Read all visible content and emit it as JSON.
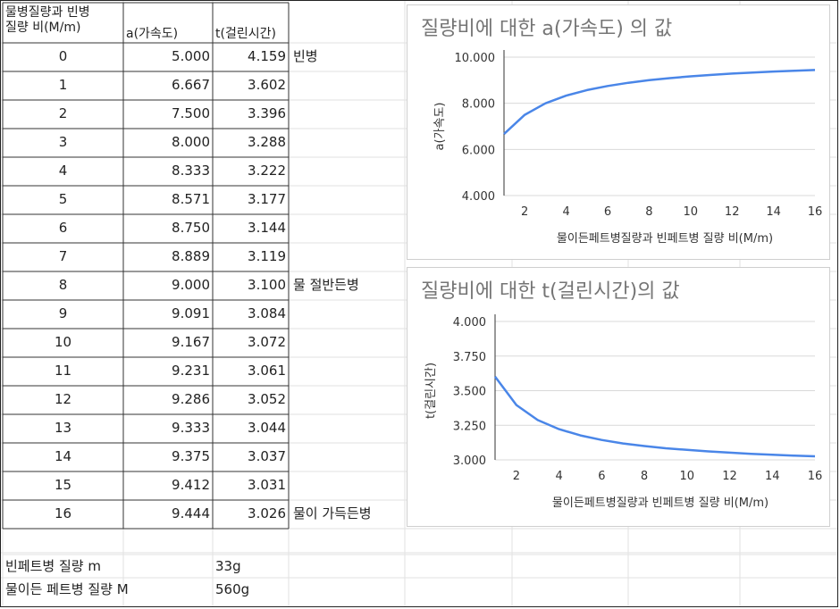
{
  "table": {
    "headers": [
      "물병질량과 빈병\n질량 비(M/m)",
      "a(가속도)",
      "t(걸린시간)"
    ],
    "rows": [
      {
        "ratio": "0",
        "a": "5.000",
        "t": "4.159",
        "note": "빈병"
      },
      {
        "ratio": "1",
        "a": "6.667",
        "t": "3.602",
        "note": ""
      },
      {
        "ratio": "2",
        "a": "7.500",
        "t": "3.396",
        "note": ""
      },
      {
        "ratio": "3",
        "a": "8.000",
        "t": "3.288",
        "note": ""
      },
      {
        "ratio": "4",
        "a": "8.333",
        "t": "3.222",
        "note": ""
      },
      {
        "ratio": "5",
        "a": "8.571",
        "t": "3.177",
        "note": ""
      },
      {
        "ratio": "6",
        "a": "8.750",
        "t": "3.144",
        "note": ""
      },
      {
        "ratio": "7",
        "a": "8.889",
        "t": "3.119",
        "note": ""
      },
      {
        "ratio": "8",
        "a": "9.000",
        "t": "3.100",
        "note": "물 절반든병"
      },
      {
        "ratio": "9",
        "a": "9.091",
        "t": "3.084",
        "note": ""
      },
      {
        "ratio": "10",
        "a": "9.167",
        "t": "3.072",
        "note": ""
      },
      {
        "ratio": "11",
        "a": "9.231",
        "t": "3.061",
        "note": ""
      },
      {
        "ratio": "12",
        "a": "9.286",
        "t": "3.052",
        "note": ""
      },
      {
        "ratio": "13",
        "a": "9.333",
        "t": "3.044",
        "note": ""
      },
      {
        "ratio": "14",
        "a": "9.375",
        "t": "3.037",
        "note": ""
      },
      {
        "ratio": "15",
        "a": "9.412",
        "t": "3.031",
        "note": ""
      },
      {
        "ratio": "16",
        "a": "9.444",
        "t": "3.026",
        "note": "물이 가득든병"
      }
    ]
  },
  "masses": [
    {
      "label": "빈페트병 질량 m",
      "value": "33g"
    },
    {
      "label": "물이든 페트병 질량 M",
      "value": "560g"
    }
  ],
  "colors": {
    "line": "#4a86e8",
    "title": "#757575",
    "grid": "#d9d9d9",
    "axis": "#333333"
  },
  "chart_data": [
    {
      "type": "line",
      "title": "질량비에 대한 a(가속도) 의 값",
      "xlabel": "물이든페트병질량과 빈페트병 질량 비(M/m)",
      "ylabel": "a(가속도)",
      "xlim": [
        1,
        16
      ],
      "ylim": [
        4,
        10
      ],
      "xticks": [
        2,
        4,
        6,
        8,
        10,
        12,
        14,
        16
      ],
      "yticks": [
        "4.000",
        "6.000",
        "8.000",
        "10.000"
      ],
      "x": [
        1,
        2,
        3,
        4,
        5,
        6,
        7,
        8,
        9,
        10,
        11,
        12,
        13,
        14,
        15,
        16
      ],
      "values": [
        6.667,
        7.5,
        8.0,
        8.333,
        8.571,
        8.75,
        8.889,
        9.0,
        9.091,
        9.167,
        9.231,
        9.286,
        9.333,
        9.375,
        9.412,
        9.444
      ],
      "grid": true
    },
    {
      "type": "line",
      "title": "질량비에 대한 t(걸린시간)의 값",
      "xlabel": "물이든페트병질량과 빈페트병 질량 비(M/m)",
      "ylabel": "t(걸린시간)",
      "xlim": [
        1,
        16
      ],
      "ylim": [
        3,
        4
      ],
      "xticks": [
        2,
        4,
        6,
        8,
        10,
        12,
        14,
        16
      ],
      "yticks": [
        "3.000",
        "3.250",
        "3.500",
        "3.750",
        "4.000"
      ],
      "x": [
        1,
        2,
        3,
        4,
        5,
        6,
        7,
        8,
        9,
        10,
        11,
        12,
        13,
        14,
        15,
        16
      ],
      "values": [
        3.602,
        3.396,
        3.288,
        3.222,
        3.177,
        3.144,
        3.119,
        3.1,
        3.084,
        3.072,
        3.061,
        3.052,
        3.044,
        3.037,
        3.031,
        3.026
      ],
      "grid": true
    }
  ]
}
